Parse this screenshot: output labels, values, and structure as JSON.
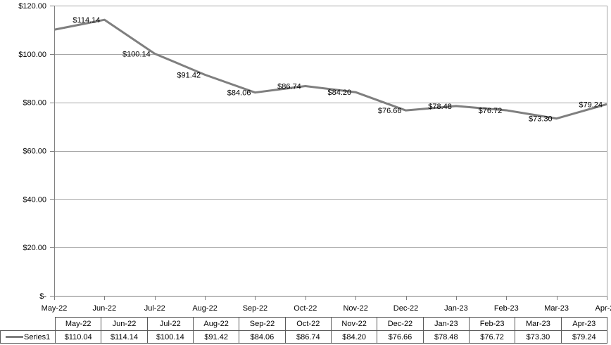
{
  "chart": {
    "background": "#FFFFFF",
    "series_color": "#7F7F7F",
    "grid_color": "#A6A6A6",
    "axis_color": "#808080",
    "text_color": "#000000",
    "table_border_color": "#595959"
  },
  "chart_data": {
    "type": "line",
    "title": "",
    "xlabel": "",
    "ylabel": "",
    "categories": [
      "May-22",
      "Jun-22",
      "Jul-22",
      "Aug-22",
      "Sep-22",
      "Oct-22",
      "Nov-22",
      "Dec-22",
      "Jan-23",
      "Feb-23",
      "Mar-23",
      "Apr-23"
    ],
    "series": [
      {
        "name": "Series1",
        "values": [
          110.04,
          114.14,
          100.14,
          91.42,
          84.06,
          86.74,
          84.2,
          76.66,
          78.48,
          76.72,
          73.3,
          79.24
        ]
      }
    ],
    "point_labels": [
      "",
      "$114.14",
      "$100.14",
      "$91.42",
      "$84.06",
      "$86.74",
      "$84.20",
      "$76.66",
      "$78.48",
      "$76.72",
      "$73.30",
      "$79.24"
    ],
    "y_axis": {
      "min": 0,
      "max": 120,
      "ticks": [
        {
          "label": "$120.00",
          "value": 120
        },
        {
          "label": "$100.00",
          "value": 100
        },
        {
          "label": "$80.00",
          "value": 80
        },
        {
          "label": "$60.00",
          "value": 60
        },
        {
          "label": "$40.00",
          "value": 40
        },
        {
          "label": "$20.00",
          "value": 20
        },
        {
          "label": "$-",
          "value": 0
        }
      ]
    },
    "grid": true,
    "legend_position": "data-table-left"
  },
  "data_table": {
    "legend_label": "Series1",
    "headers": [
      "May-22",
      "Jun-22",
      "Jul-22",
      "Aug-22",
      "Sep-22",
      "Oct-22",
      "Nov-22",
      "Dec-22",
      "Jan-23",
      "Feb-23",
      "Mar-23",
      "Apr-23"
    ],
    "values": [
      "$110.04",
      "$114.14",
      "$100.14",
      "$91.42",
      "$84.06",
      "$86.74",
      "$84.20",
      "$76.66",
      "$78.48",
      "$76.72",
      "$73.30",
      "$79.24"
    ]
  }
}
